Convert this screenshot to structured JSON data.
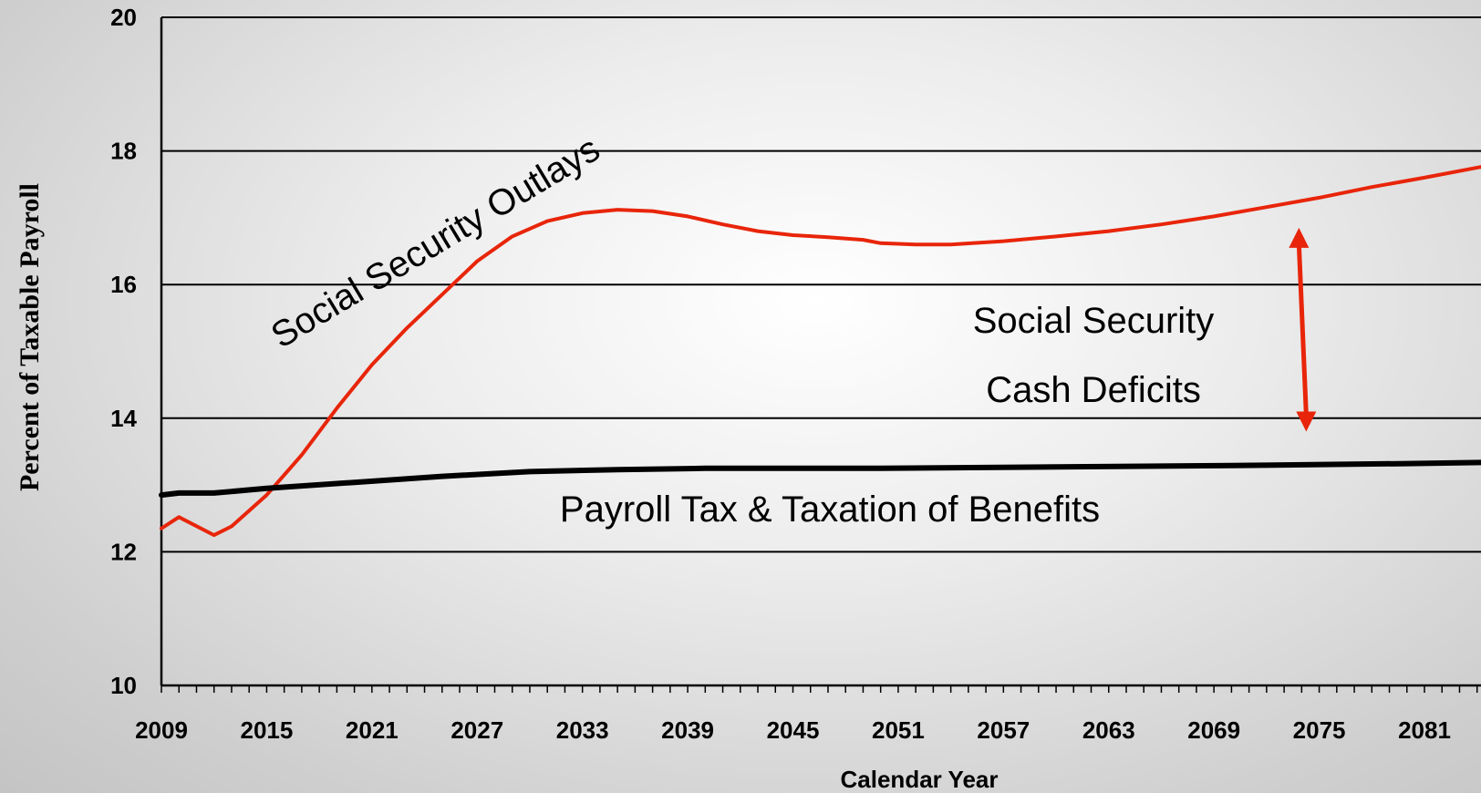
{
  "chart_data": {
    "type": "line",
    "title": "",
    "xlabel": "Calendar Year",
    "ylabel": "Percent of Taxable Payroll",
    "xlim": [
      2009,
      2085
    ],
    "ylim": [
      10,
      20
    ],
    "grid": true,
    "x_ticks": [
      "2009",
      "2015",
      "2021",
      "2027",
      "2033",
      "2039",
      "2045",
      "2051",
      "2057",
      "2063",
      "2069",
      "2075",
      "2081"
    ],
    "y_ticks": [
      "10",
      "12",
      "14",
      "16",
      "18",
      "20"
    ],
    "series": [
      {
        "name": "Social Security Outlays",
        "color": "#e8250a",
        "x": [
          2009,
          2010,
          2012,
          2013,
          2015,
          2017,
          2019,
          2021,
          2023,
          2025,
          2027,
          2029,
          2031,
          2033,
          2035,
          2037,
          2039,
          2041,
          2043,
          2045,
          2047,
          2049,
          2050,
          2052,
          2054,
          2057,
          2060,
          2063,
          2066,
          2069,
          2072,
          2075,
          2078,
          2081,
          2085
        ],
        "values": [
          12.35,
          12.52,
          12.25,
          12.38,
          12.85,
          13.45,
          14.15,
          14.8,
          15.35,
          15.85,
          16.35,
          16.72,
          16.95,
          17.07,
          17.12,
          17.1,
          17.02,
          16.9,
          16.8,
          16.74,
          16.71,
          16.67,
          16.62,
          16.6,
          16.6,
          16.65,
          16.72,
          16.8,
          16.9,
          17.02,
          17.16,
          17.3,
          17.46,
          17.6,
          17.8
        ]
      },
      {
        "name": "Payroll Tax & Taxation of Benefits",
        "color": "#000000",
        "x": [
          2009,
          2010,
          2012,
          2015,
          2020,
          2025,
          2030,
          2035,
          2040,
          2050,
          2060,
          2070,
          2080,
          2085
        ],
        "values": [
          12.85,
          12.88,
          12.88,
          12.95,
          13.04,
          13.13,
          13.2,
          13.23,
          13.25,
          13.25,
          13.27,
          13.29,
          13.32,
          13.34
        ]
      }
    ],
    "annotations": {
      "outlays_label": "Social Security Outlays",
      "payroll_label": "Payroll Tax & Taxation of Benefits",
      "deficit_line1": "Social Security",
      "deficit_line2": "Cash Deficits"
    },
    "arrow": {
      "x": 2074,
      "from": 16.85,
      "to": 13.8,
      "color": "#e8250a"
    }
  }
}
